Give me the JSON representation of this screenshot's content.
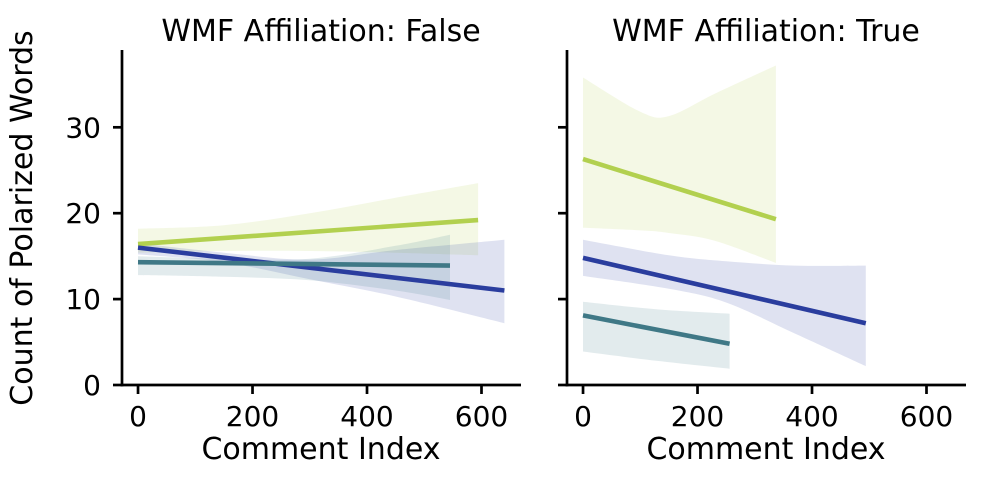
{
  "figure": {
    "background": "#ffffff",
    "axis_color": "#000000",
    "band_alpha": 0.15
  },
  "chart_data": [
    {
      "type": "line",
      "title": "WMF Affiliation: False",
      "xlabel": "Comment Index",
      "ylabel": "Count of Polarized Words",
      "xlim": [
        -28,
        669
      ],
      "ylim": [
        0,
        39
      ],
      "xticks": [
        0,
        200,
        400,
        600
      ],
      "yticks": [
        0,
        10,
        20,
        30
      ],
      "ytick_labels": true,
      "grid": false,
      "legend": "none",
      "series": [
        {
          "name": "green",
          "color": "#b2d04f",
          "line": [
            [
              0,
              16.4
            ],
            [
              594,
              19.2
            ]
          ],
          "band": [
            [
              0,
              15.4,
              18.2
            ],
            [
              150,
              15.6,
              18.6
            ],
            [
              300,
              15.6,
              20.0
            ],
            [
              450,
              15.4,
              21.8
            ],
            [
              594,
              15.1,
              23.5
            ]
          ]
        },
        {
          "name": "blue",
          "color": "#2a3d9e",
          "line": [
            [
              0,
              16.0
            ],
            [
              640,
              11.0
            ]
          ],
          "band": [
            [
              0,
              15.2,
              16.5
            ],
            [
              150,
              14.3,
              15.4
            ],
            [
              300,
              12.3,
              14.6
            ],
            [
              450,
              10.3,
              15.7
            ],
            [
              640,
              7.2,
              16.9
            ]
          ]
        },
        {
          "name": "teal",
          "color": "#3f7886",
          "line": [
            [
              0,
              14.3
            ],
            [
              545,
              13.9
            ]
          ],
          "band": [
            [
              0,
              12.8,
              15.0
            ],
            [
              150,
              12.6,
              14.7
            ],
            [
              300,
              12.2,
              14.7
            ],
            [
              450,
              11.0,
              16.2
            ],
            [
              545,
              9.9,
              17.5
            ]
          ]
        }
      ]
    },
    {
      "type": "line",
      "title": "WMF Affiliation: True",
      "xlabel": "Comment Index",
      "ylabel": "",
      "xlim": [
        -28,
        669
      ],
      "ylim": [
        0,
        39
      ],
      "xticks": [
        0,
        200,
        400,
        600
      ],
      "yticks": [
        0,
        10,
        20,
        30
      ],
      "ytick_labels": false,
      "grid": false,
      "legend": "none",
      "series": [
        {
          "name": "green",
          "color": "#b2d04f",
          "line": [
            [
              0,
              26.3
            ],
            [
              337,
              19.3
            ]
          ],
          "band": [
            [
              0,
              18.3,
              35.8
            ],
            [
              100,
              18.0,
              31.8
            ],
            [
              150,
              17.7,
              31.3
            ],
            [
              230,
              16.8,
              33.9
            ],
            [
              337,
              14.2,
              37.2
            ]
          ]
        },
        {
          "name": "blue",
          "color": "#2a3d9e",
          "line": [
            [
              0,
              14.8
            ],
            [
              494,
              7.2
            ]
          ],
          "band": [
            [
              0,
              12.7,
              16.9
            ],
            [
              150,
              11.2,
              15.1
            ],
            [
              250,
              9.6,
              14.4
            ],
            [
              370,
              6.0,
              13.9
            ],
            [
              494,
              2.2,
              13.9
            ]
          ]
        },
        {
          "name": "teal",
          "color": "#3f7886",
          "line": [
            [
              0,
              8.1
            ],
            [
              256,
              4.8
            ]
          ],
          "band": [
            [
              0,
              3.9,
              9.7
            ],
            [
              130,
              2.8,
              8.8
            ],
            [
              256,
              1.9,
              8.3
            ]
          ]
        }
      ]
    }
  ]
}
